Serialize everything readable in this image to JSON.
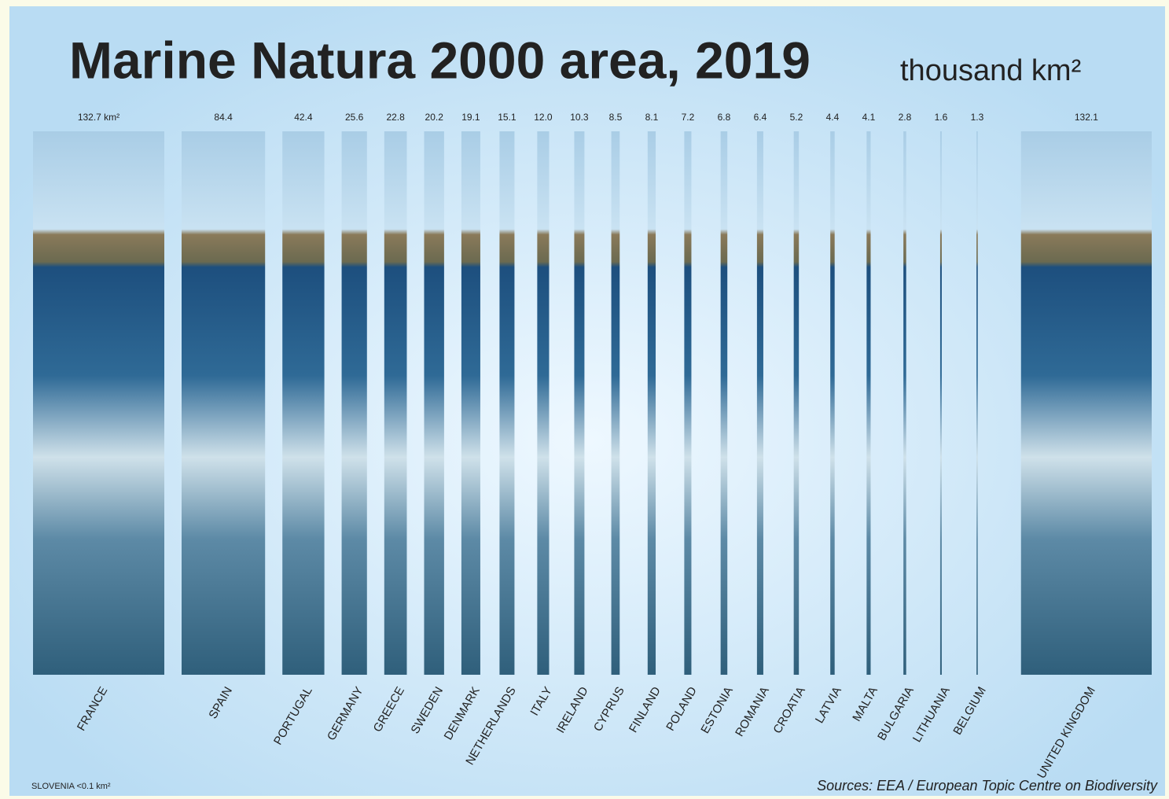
{
  "chart_data": {
    "type": "bar",
    "title": "Marine Natura 2000 area, 2019",
    "unit": "thousand km²",
    "categories": [
      "FRANCE",
      "SPAIN",
      "PORTUGAL",
      "GERMANY",
      "GREECE",
      "SWEDEN",
      "DENMARK",
      "NETHERLANDS",
      "ITALY",
      "IRELAND",
      "CYPRUS",
      "FINLAND",
      "POLAND",
      "ESTONIA",
      "ROMANIA",
      "CROATIA",
      "LATVIA",
      "MALTA",
      "BULGARIA",
      "LITHUANIA",
      "BELGIUM",
      "UNITED KINGDOM"
    ],
    "values": [
      132.7,
      84.4,
      42.4,
      25.6,
      22.8,
      20.2,
      19.1,
      15.1,
      12.0,
      10.3,
      8.5,
      8.1,
      7.2,
      6.8,
      6.4,
      5.2,
      4.4,
      4.1,
      2.8,
      1.6,
      1.3,
      132.1
    ],
    "value_labels": [
      "132.7 km²",
      "84.4",
      "42.4",
      "25.6",
      "22.8",
      "20.2",
      "19.1",
      "15.1",
      "12.0",
      "10.3",
      "8.5",
      "8.1",
      "7.2",
      "6.8",
      "6.4",
      "5.2",
      "4.4",
      "4.1",
      "2.8",
      "1.6",
      "1.3",
      "132.1"
    ],
    "footnote": "SLOVENIA  <0.1 km²",
    "source": "Sources: EEA / European Topic Centre on Biodiversity"
  }
}
